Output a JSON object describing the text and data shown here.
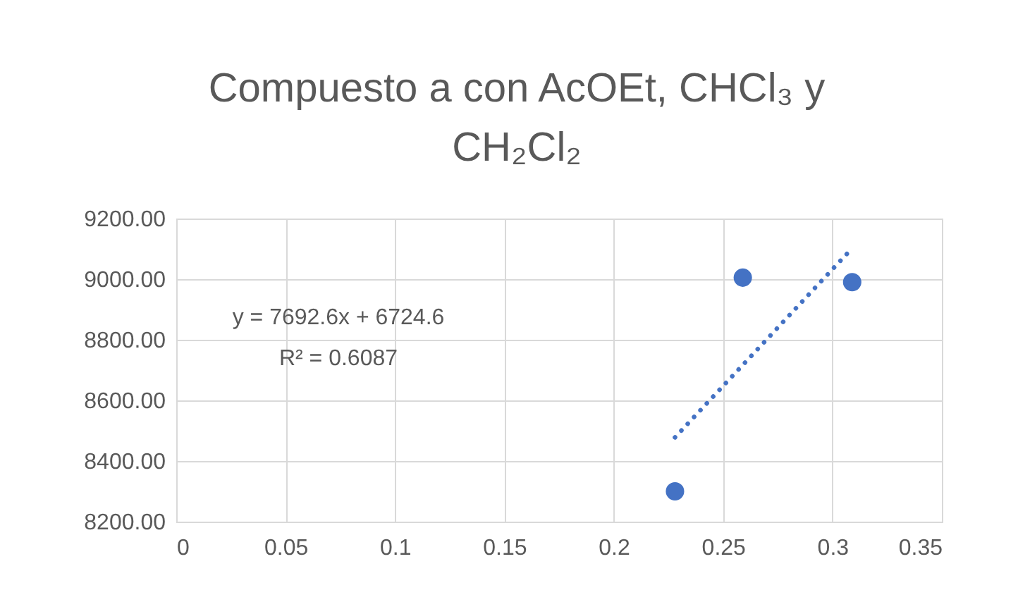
{
  "chart_data": {
    "type": "scatter",
    "title": "Compuesto a con AcOEt, CHCl₃ y CH₂Cl₂",
    "annotations": [
      "y = 7692.6x + 6724.6",
      "R² = 0.6087"
    ],
    "series": [
      {
        "color": "#4472c4",
        "x": [
          0.228,
          0.259,
          0.309
        ],
        "values": [
          8300,
          9005,
          8990
        ]
      },
      {
        "type": "line",
        "color": "#4472c4",
        "line_style": "dotted",
        "marker": "none",
        "x": [
          0.228,
          0.309
        ],
        "values": [
          8478,
          9102
        ]
      }
    ],
    "marker": "circle",
    "xlim": [
      0,
      0.35
    ],
    "xticks": [
      0,
      0.05,
      0.1,
      0.15,
      0.2,
      0.25,
      0.3,
      0.35
    ],
    "ylim": [
      8200,
      9200
    ],
    "yticks": [
      {
        "value": 8200,
        "label": "8200.00"
      },
      {
        "value": 8400,
        "label": "8400.00"
      },
      {
        "value": 8600,
        "label": "8600.00"
      },
      {
        "value": 8800,
        "label": "8800.00"
      },
      {
        "value": 9000,
        "label": "9000.00"
      },
      {
        "value": 9200,
        "label": "9200.00"
      }
    ],
    "grid": true
  }
}
